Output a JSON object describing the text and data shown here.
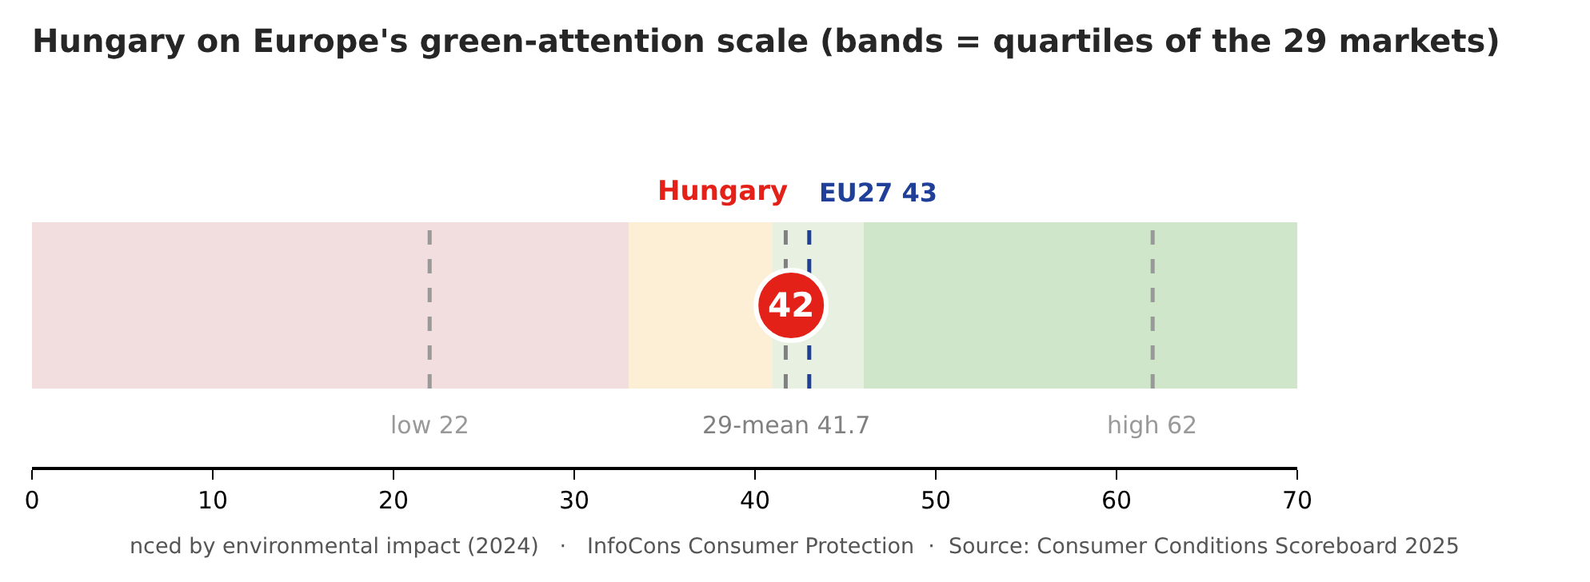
{
  "chart_data": {
    "type": "bar",
    "title": "Hungary on Europe's green-attention scale (bands = quartiles of the 29 markets)",
    "orientation": "horizontal",
    "stacked": true,
    "categories": [
      null
    ],
    "series": [
      {
        "color": "#f2dede",
        "values": [
          33
        ]
      },
      {
        "color": "#fdefd6",
        "values": [
          8
        ]
      },
      {
        "color": "#e7f0e1",
        "values": [
          5
        ]
      },
      {
        "color": "#cfe6cb",
        "values": [
          24
        ]
      }
    ],
    "xlim": [
      0,
      70
    ],
    "xticks": [
      0,
      10,
      20,
      30,
      40,
      50,
      60,
      70
    ],
    "tick_labels": "x",
    "ref_lines": [
      {
        "axis": "x",
        "value": 22,
        "label": "low 22",
        "color": "#999999",
        "line_style": "dashed"
      },
      {
        "axis": "x",
        "value": 41.7,
        "label": "29-mean 41.7",
        "color": "#808080",
        "line_style": "dashed"
      },
      {
        "axis": "x",
        "value": 43,
        "label": "EU27 43",
        "color": "#1f3f99",
        "line_style": "dashed"
      },
      {
        "axis": "x",
        "value": 62,
        "label": "high 62",
        "color": "#999999",
        "line_style": "dashed"
      }
    ],
    "annotations": [
      {
        "text": "42",
        "x": 42
      },
      "Hungary",
      "nced by environmental impact (2024)   ·   InfoCons Consumer Protection  ·  Source: Consumer Conditions Scoreboard 2025"
    ]
  }
}
